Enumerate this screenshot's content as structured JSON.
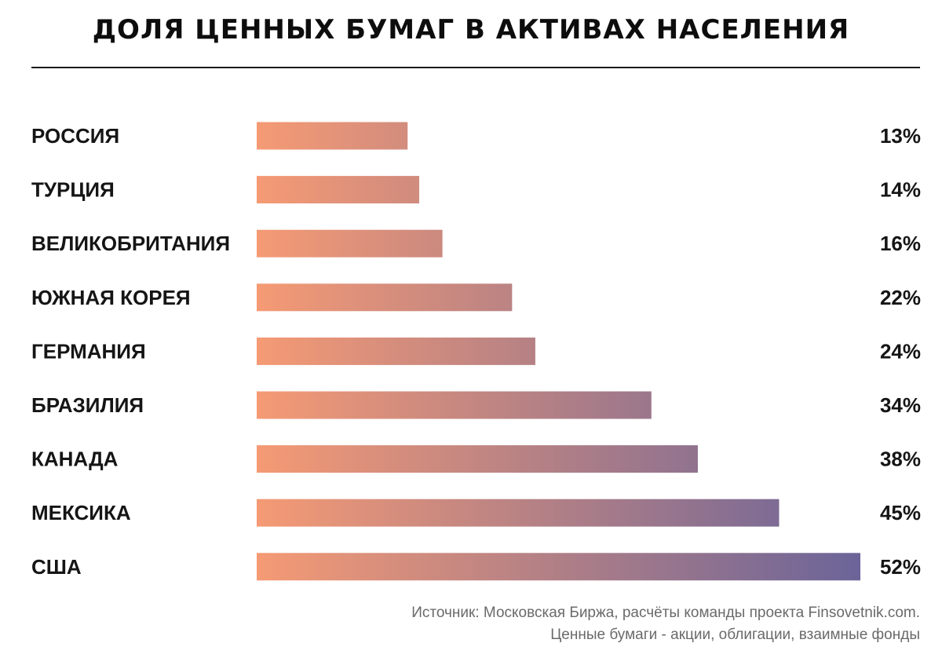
{
  "title": "ДОЛЯ ЦЕННЫХ БУМАГ В АКТИВАХ НАСЕЛЕНИЯ",
  "colors": {
    "gradient_start": "#f59a74",
    "gradient_end": "#6b6499",
    "text": "#151515",
    "footer_text": "#6a6a6a",
    "rule": "#1b1b1b"
  },
  "chart_data": {
    "type": "bar",
    "orientation": "horizontal",
    "title": "ДОЛЯ ЦЕННЫХ БУМАГ В АКТИВАХ НАСЕЛЕНИЯ",
    "xlabel": "",
    "ylabel": "",
    "unit": "%",
    "xlim": [
      0,
      52
    ],
    "grid": false,
    "categories": [
      "РОССИЯ",
      "ТУРЦИЯ",
      "ВЕЛИКОБРИТАНИЯ",
      "ЮЖНАЯ КОРЕЯ",
      "ГЕРМАНИЯ",
      "БРАЗИЛИЯ",
      "КАНАДА",
      "МЕКСИКА",
      "США"
    ],
    "values": [
      13,
      14,
      16,
      22,
      24,
      34,
      38,
      45,
      52
    ],
    "value_labels": [
      "13%",
      "14%",
      "16%",
      "22%",
      "24%",
      "34%",
      "38%",
      "45%",
      "52%"
    ]
  },
  "footer": {
    "source": "Источник: Московская Биржа, расчёты команды проекта Finsovetnik.com.",
    "note": "Ценные бумаги - акции, облигации, взаимные фонды"
  }
}
